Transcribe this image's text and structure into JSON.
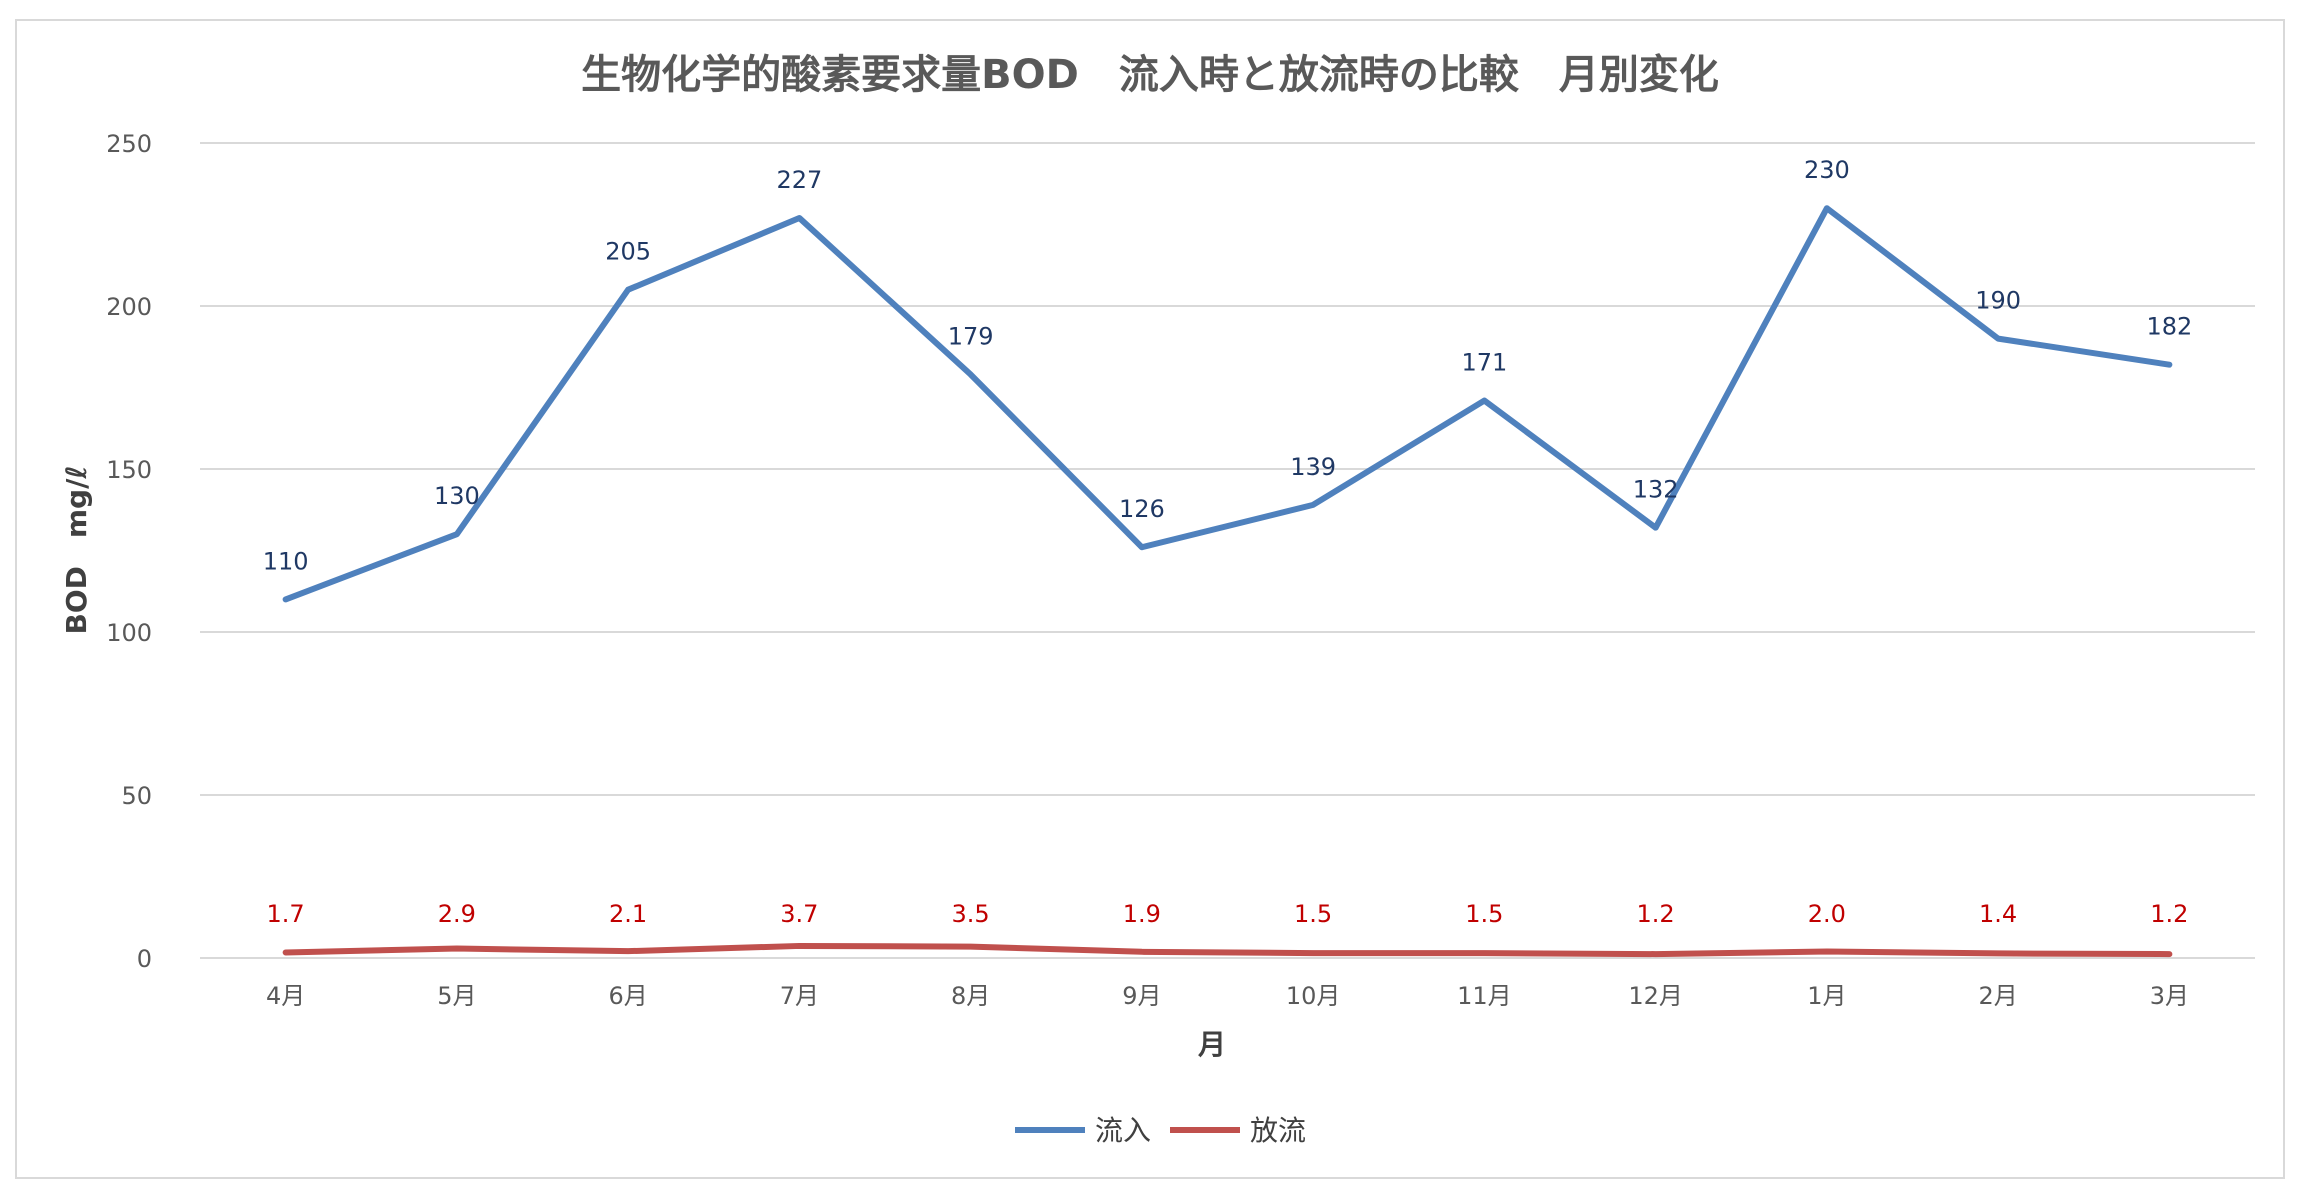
{
  "chart_data": {
    "type": "line",
    "title": "生物化学的酸素要求量BOD　流入時と放流時の比較　月別変化",
    "xlabel": "月",
    "ylabel": "BOD　mg/ℓ",
    "ylim": [
      0,
      250
    ],
    "yticks": [
      0,
      50,
      100,
      150,
      200,
      250
    ],
    "grid": true,
    "legend_position": "bottom",
    "categories": [
      "4月",
      "5月",
      "6月",
      "7月",
      "8月",
      "9月",
      "10月",
      "11月",
      "12月",
      "1月",
      "2月",
      "3月"
    ],
    "series": [
      {
        "name": "流入",
        "color": "#4f81bd",
        "label_color": "#1f3864",
        "values": [
          110,
          130,
          205,
          227,
          179,
          126,
          139,
          171,
          132,
          230,
          190,
          182
        ],
        "labels": [
          "110",
          "130",
          "205",
          "227",
          "179",
          "126",
          "139",
          "171",
          "132",
          "230",
          "190",
          "182"
        ]
      },
      {
        "name": "放流",
        "color": "#c0504d",
        "label_color": "#c00000",
        "values": [
          1.7,
          2.9,
          2.1,
          3.7,
          3.5,
          1.9,
          1.5,
          1.5,
          1.2,
          2.0,
          1.4,
          1.2
        ],
        "labels": [
          "1.7",
          "2.9",
          "2.1",
          "3.7",
          "3.5",
          "1.9",
          "1.5",
          "1.5",
          "1.2",
          "2.0",
          "1.4",
          "1.2"
        ]
      }
    ]
  }
}
